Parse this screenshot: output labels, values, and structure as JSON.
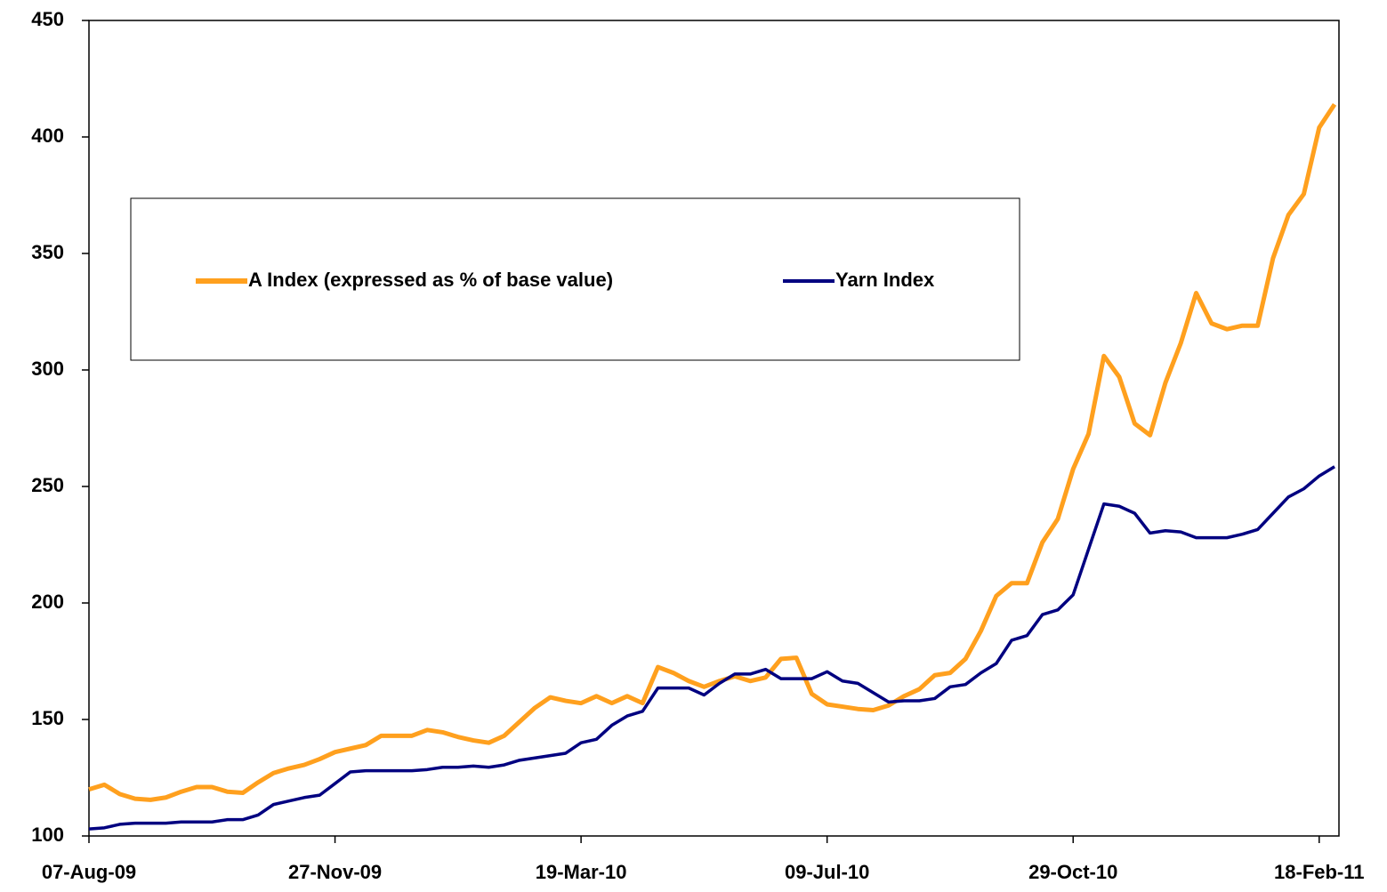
{
  "chart_data": {
    "type": "line",
    "x": [
      "2009-08-07",
      "2009-08-14",
      "2009-08-21",
      "2009-08-28",
      "2009-09-04",
      "2009-09-11",
      "2009-09-18",
      "2009-09-25",
      "2009-10-02",
      "2009-10-09",
      "2009-10-16",
      "2009-10-23",
      "2009-10-30",
      "2009-11-06",
      "2009-11-13",
      "2009-11-20",
      "2009-11-27",
      "2009-12-04",
      "2009-12-11",
      "2009-12-18",
      "2009-12-25",
      "2010-01-01",
      "2010-01-08",
      "2010-01-15",
      "2010-01-22",
      "2010-01-29",
      "2010-02-05",
      "2010-02-12",
      "2010-02-19",
      "2010-02-26",
      "2010-03-05",
      "2010-03-12",
      "2010-03-19",
      "2010-03-26",
      "2010-04-02",
      "2010-04-09",
      "2010-04-16",
      "2010-04-23",
      "2010-04-30",
      "2010-05-07",
      "2010-05-14",
      "2010-05-21",
      "2010-05-28",
      "2010-06-04",
      "2010-06-11",
      "2010-06-18",
      "2010-06-25",
      "2010-07-02",
      "2010-07-09",
      "2010-07-16",
      "2010-07-23",
      "2010-07-30",
      "2010-08-06",
      "2010-08-13",
      "2010-08-20",
      "2010-08-27",
      "2010-09-03",
      "2010-09-10",
      "2010-09-17",
      "2010-09-24",
      "2010-10-01",
      "2010-10-08",
      "2010-10-15",
      "2010-10-22",
      "2010-10-29",
      "2010-11-05",
      "2010-11-12",
      "2010-11-19",
      "2010-11-26",
      "2010-12-03",
      "2010-12-10",
      "2010-12-17",
      "2010-12-24",
      "2010-12-31",
      "2011-01-07",
      "2011-01-14",
      "2011-01-21",
      "2011-01-28",
      "2011-02-04",
      "2011-02-11",
      "2011-02-18",
      "2011-02-25"
    ],
    "series": [
      {
        "name": "A Index (expressed as % of base value)",
        "color": "#ffa01e",
        "values": [
          120,
          122,
          118,
          116,
          115.5,
          116.5,
          119,
          121,
          121,
          119,
          118.5,
          123,
          127,
          129,
          130.5,
          133,
          136,
          137.5,
          139,
          143,
          143,
          143,
          145.5,
          144.5,
          142.5,
          141,
          140,
          143,
          149,
          155,
          159.5,
          158,
          157,
          160,
          157,
          160,
          157,
          172.5,
          170,
          166.5,
          164,
          166.5,
          168.5,
          166.5,
          168,
          176,
          176.5,
          161,
          156.5,
          155.5,
          154.5,
          154,
          156,
          160,
          163,
          169,
          170,
          176,
          188,
          203,
          208.5,
          208.5,
          226,
          236,
          257.5,
          272.5,
          306,
          297,
          277,
          272,
          294.5,
          311.5,
          333,
          320,
          317.5,
          319,
          319,
          348,
          366.5,
          375.5,
          404,
          414
        ]
      },
      {
        "name": "Yarn Index",
        "color": "#000080",
        "values": [
          103,
          103.5,
          105,
          105.5,
          105.5,
          105.5,
          106,
          106,
          106,
          107,
          107,
          109,
          113.5,
          115,
          116.5,
          117.5,
          122.5,
          127.5,
          128,
          128,
          128,
          128,
          128.5,
          129.5,
          129.5,
          130,
          129.5,
          130.5,
          132.5,
          133.5,
          134.5,
          135.5,
          140,
          141.5,
          147.5,
          151.5,
          153.5,
          163.5,
          163.5,
          163.5,
          160.5,
          165.5,
          169.5,
          169.5,
          171.5,
          167.5,
          167.5,
          167.5,
          170.5,
          166.5,
          165.5,
          161.5,
          157.5,
          158,
          158,
          159,
          164,
          165,
          170,
          174,
          184,
          186,
          195,
          197,
          203.5,
          223,
          242.5,
          241.5,
          238.5,
          230,
          231,
          230.5,
          228,
          228,
          228,
          229.5,
          231.5,
          238.5,
          245.5,
          249,
          254.5,
          258.5
        ]
      }
    ],
    "xlim": [
      "2009-08-07",
      "2011-02-27"
    ],
    "xticks": [
      {
        "value": "2009-08-07",
        "label": "07-Aug-09"
      },
      {
        "value": "2009-11-27",
        "label": "27-Nov-09"
      },
      {
        "value": "2010-03-19",
        "label": "19-Mar-10"
      },
      {
        "value": "2010-07-09",
        "label": "09-Jul-10"
      },
      {
        "value": "2010-10-29",
        "label": "29-Oct-10"
      },
      {
        "value": "2011-02-18",
        "label": "18-Feb-11"
      }
    ],
    "ylim": [
      100,
      450
    ],
    "yticks": [
      100,
      150,
      200,
      250,
      300,
      350,
      400,
      450
    ],
    "grid": false
  }
}
